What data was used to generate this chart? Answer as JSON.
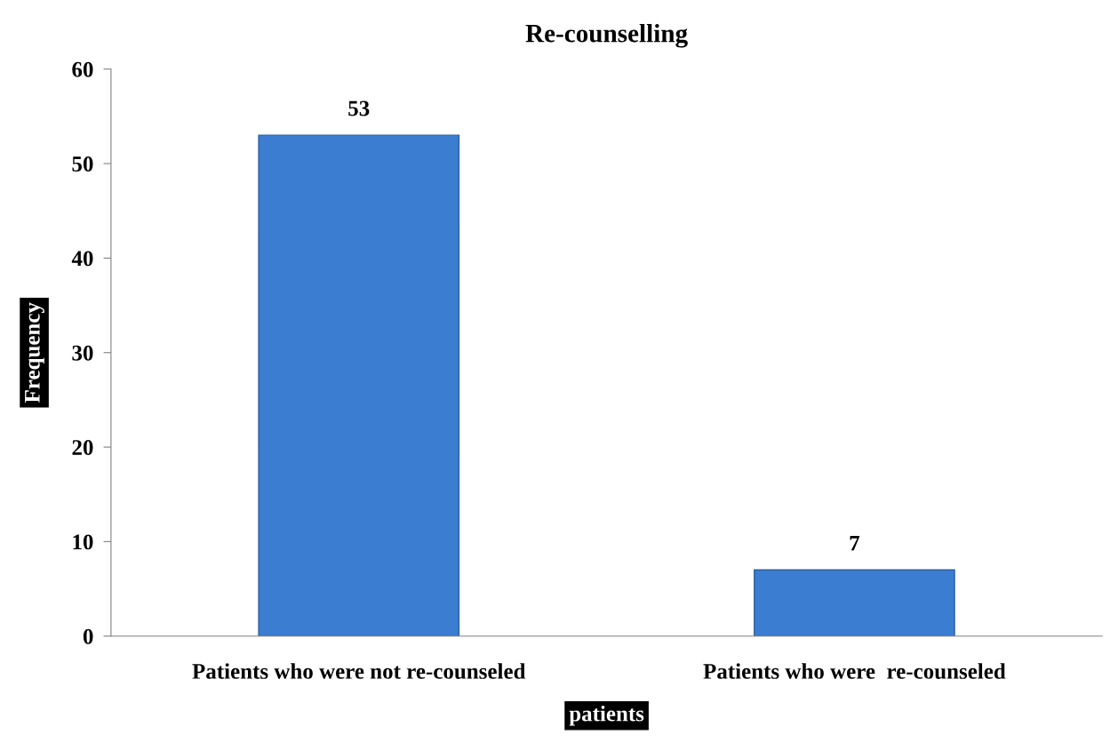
{
  "chart_data": {
    "type": "bar",
    "title": "Re-counselling",
    "xlabel": "patients",
    "ylabel": "Frequency",
    "categories": [
      "Patients who were not re-counseled",
      "Patients who were  re-counseled"
    ],
    "values": [
      53,
      7
    ],
    "color": "#3b7dd0",
    "ylim": [
      0,
      60
    ],
    "yticks": [
      0,
      10,
      20,
      30,
      40,
      50,
      60
    ],
    "grid": false,
    "data_labels": true
  }
}
